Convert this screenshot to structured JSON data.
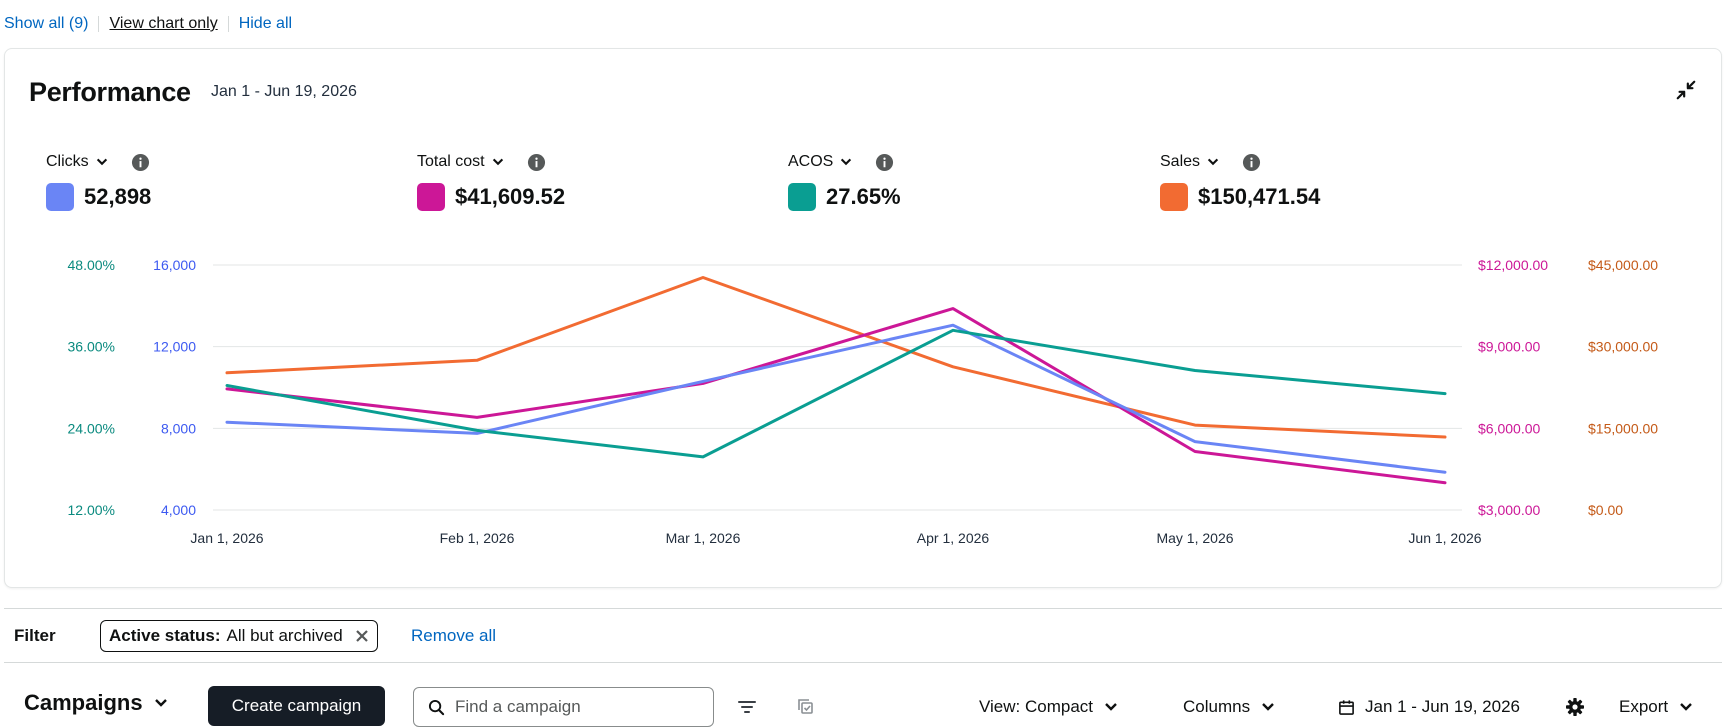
{
  "top_links": {
    "show_all": "Show all (9)",
    "view_chart_only": "View chart only",
    "hide_all": "Hide all"
  },
  "performance": {
    "title": "Performance",
    "date_range": "Jan 1 - Jun 19, 2026",
    "metrics": [
      {
        "label": "Clicks",
        "value": "52,898",
        "color": "#6a85f5"
      },
      {
        "label": "Total cost",
        "value": "$41,609.52",
        "color": "#cc1797"
      },
      {
        "label": "ACOS",
        "value": "27.65%",
        "color": "#0a9e92"
      },
      {
        "label": "Sales",
        "value": "$150,471.54",
        "color": "#f26b32"
      }
    ]
  },
  "chart_data": {
    "type": "line",
    "x": [
      "Jan 1, 2026",
      "Feb 1, 2026",
      "Mar 1, 2026",
      "Apr 1, 2026",
      "May 1, 2026",
      "Jun 1, 2026"
    ],
    "axes": {
      "acos": {
        "side": "left-outer",
        "ticks": [
          "48.00%",
          "36.00%",
          "24.00%",
          "12.00%"
        ],
        "range": [
          12,
          48
        ],
        "color": "#0a8a7f"
      },
      "clicks": {
        "side": "left-inner",
        "ticks": [
          "16,000",
          "12,000",
          "8,000",
          "4,000"
        ],
        "range": [
          4000,
          16000
        ],
        "color": "#3d5af1"
      },
      "cost": {
        "side": "right-inner",
        "ticks": [
          "$12,000.00",
          "$9,000.00",
          "$6,000.00",
          "$3,000.00"
        ],
        "range": [
          3000,
          12000
        ],
        "color": "#cc1797"
      },
      "sales": {
        "side": "right-outer",
        "ticks": [
          "$45,000.00",
          "$30,000.00",
          "$15,000.00",
          "$0.00"
        ],
        "range": [
          0,
          45000
        ],
        "color": "#c45a18"
      }
    },
    "series": [
      {
        "name": "Sales",
        "axis": "sales",
        "color": "#f26b32",
        "values": [
          25200,
          27500,
          42700,
          26300,
          15600,
          13400
        ]
      },
      {
        "name": "Total cost",
        "axis": "cost",
        "color": "#cc1797",
        "values": [
          7450,
          6400,
          7650,
          10400,
          5150,
          4000
        ]
      },
      {
        "name": "Clicks",
        "axis": "clicks",
        "color": "#6a85f5",
        "values": [
          8300,
          7750,
          10300,
          13050,
          7350,
          5850
        ]
      },
      {
        "name": "ACOS",
        "axis": "acos",
        "color": "#0a9e92",
        "values": [
          30.3,
          23.7,
          19.8,
          38.4,
          32.5,
          29.1
        ]
      }
    ],
    "grid": true
  },
  "filter": {
    "label": "Filter",
    "chip_key": "Active status:",
    "chip_value": "All but archived",
    "remove_all": "Remove all"
  },
  "campaigns": {
    "title": "Campaigns",
    "create_button": "Create campaign",
    "search_placeholder": "Find a campaign",
    "view": "View: Compact",
    "columns": "Columns",
    "date_range": "Jan 1 - Jun 19, 2026",
    "export": "Export"
  }
}
